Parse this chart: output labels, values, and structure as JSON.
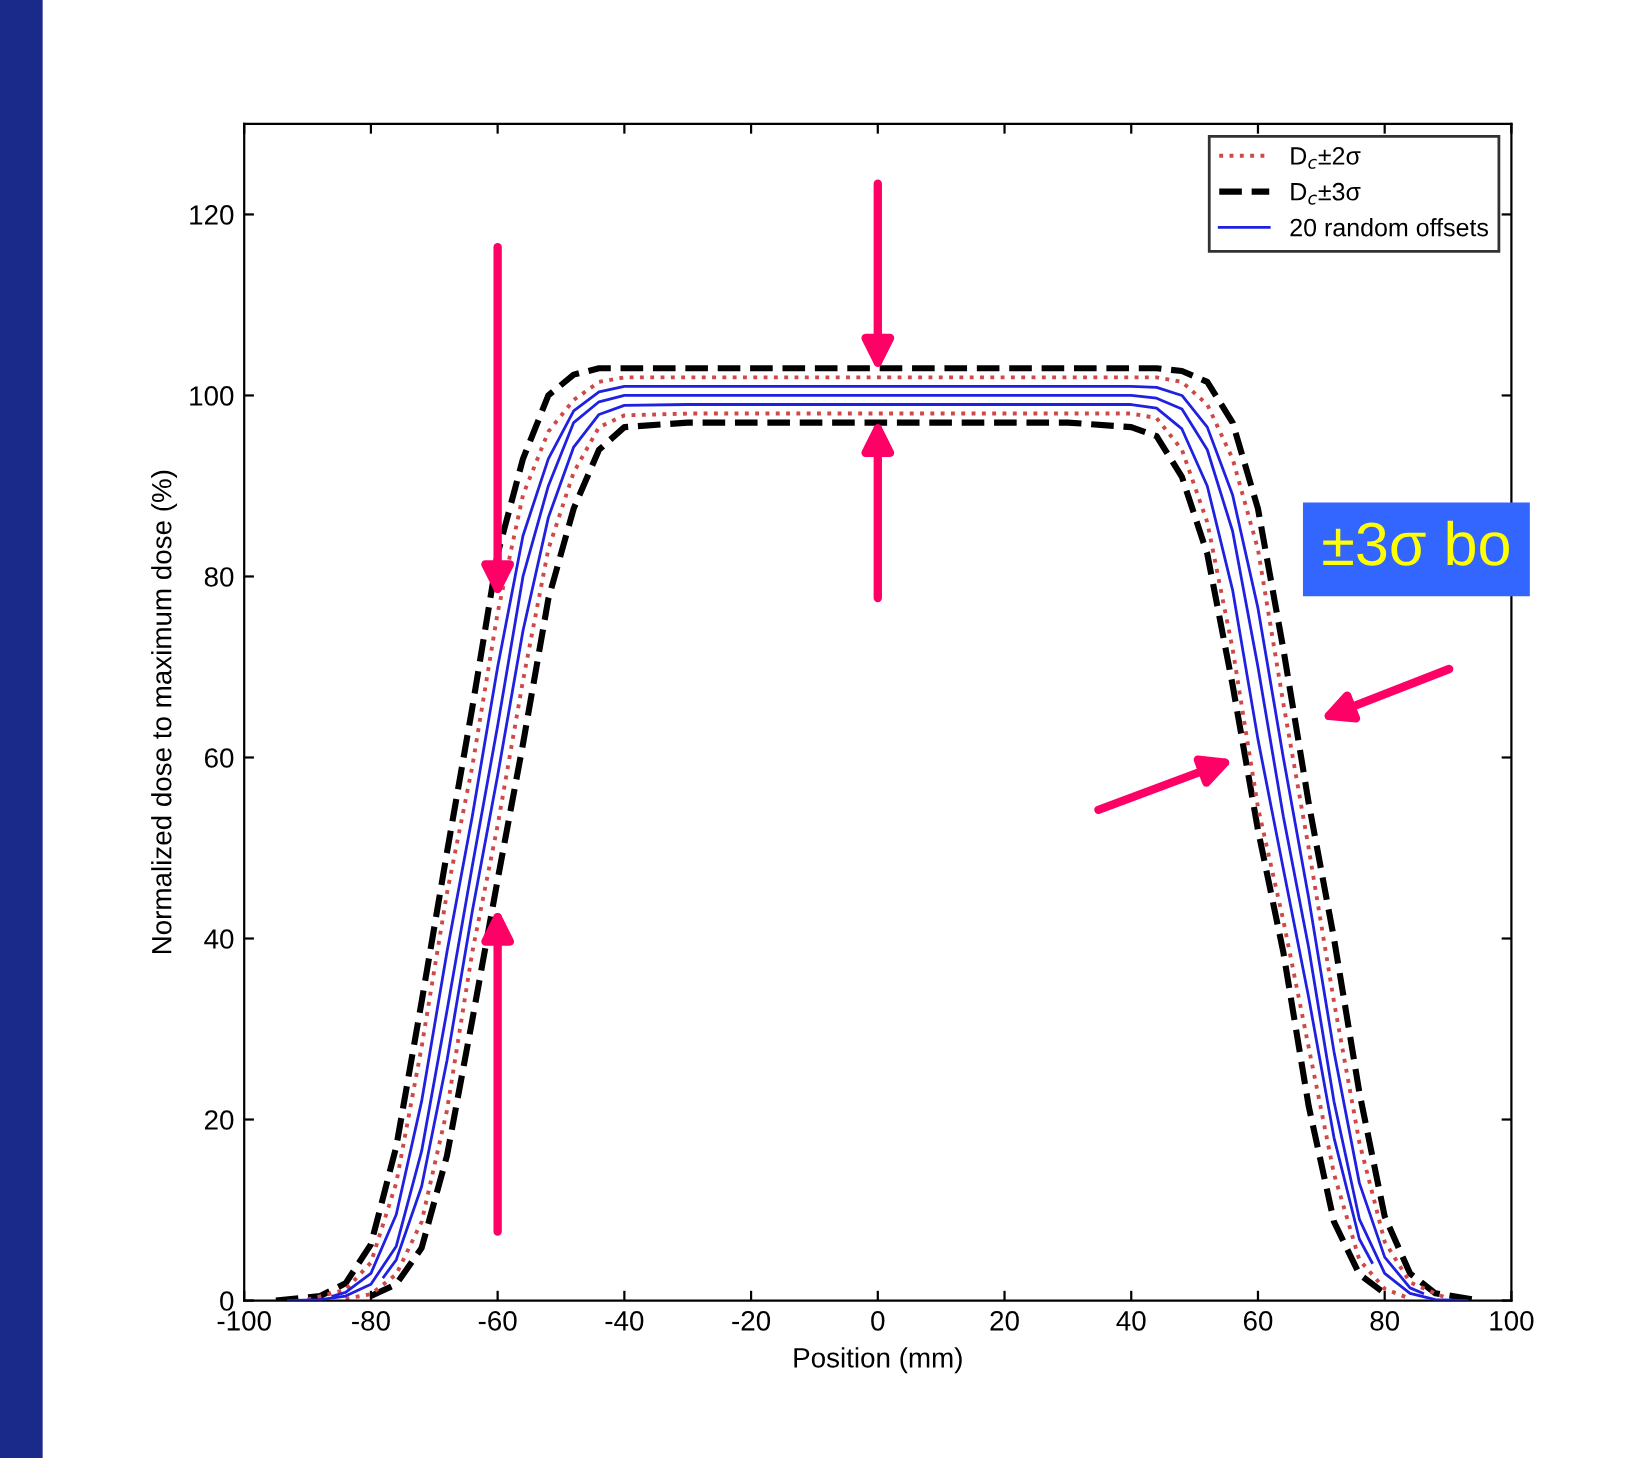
{
  "chart_data": {
    "type": "line",
    "xlabel": "Position (mm)",
    "ylabel": "Normalized dose to maximum dose (%)",
    "series": [
      {
        "name": "D$_{c}$±2σ",
        "color": "#d04848",
        "line_style": "dotted",
        "x": [
          -90,
          -84,
          -80,
          -76,
          -72,
          -68,
          -64,
          -60,
          -56,
          -52,
          -48,
          -44,
          -40,
          -30,
          -20,
          0,
          20,
          30,
          40,
          44,
          48,
          52,
          56,
          60,
          64,
          68,
          72,
          76,
          80,
          84,
          90
        ],
        "values": [
          0.1,
          1.2,
          4.2,
          13,
          28,
          45,
          59,
          76,
          89,
          96,
          99.5,
          101.5,
          102,
          102,
          102,
          102,
          102,
          102,
          102,
          102,
          101.5,
          99,
          93,
          83,
          66,
          50,
          33,
          17.5,
          6.5,
          2,
          0.2
        ]
      },
      {
        "color": "#d04848",
        "line_style": "dotted",
        "x": [
          -84,
          -80,
          -76,
          -72,
          -68,
          -64,
          -60,
          -56,
          -52,
          -48,
          -44,
          -40,
          -30,
          -20,
          0,
          20,
          30,
          40,
          44,
          48,
          52,
          56,
          60,
          64,
          68,
          72,
          76,
          80,
          84
        ],
        "values": [
          0.2,
          0.7,
          2.9,
          8.7,
          21,
          38.5,
          52.5,
          68.5,
          83,
          91.5,
          96.5,
          97.8,
          98,
          98,
          98,
          98,
          98,
          98,
          97.5,
          94,
          86,
          72,
          54.5,
          42,
          28,
          14,
          4.5,
          1.3,
          0.2
        ]
      },
      {
        "name": "D$_{c}$±3σ",
        "color": "#000000",
        "line_style": "dashed",
        "x": [
          -95,
          -88,
          -84,
          -80,
          -76,
          -72,
          -68,
          -64,
          -60,
          -56,
          -52,
          -48,
          -44,
          -40,
          -30,
          -20,
          0,
          20,
          30,
          40,
          44,
          48,
          52,
          56,
          60,
          64,
          68,
          72,
          76,
          80,
          84,
          88,
          95
        ],
        "values": [
          0,
          0.5,
          1.9,
          6.2,
          17,
          33,
          49.5,
          65.5,
          82.5,
          93,
          100,
          102.3,
          103,
          103,
          103,
          103,
          103,
          103,
          103,
          103,
          103,
          102.7,
          101.5,
          97,
          87.5,
          72,
          55,
          40,
          23,
          9.3,
          3,
          0.8,
          0
        ]
      },
      {
        "color": "#000000",
        "line_style": "dashed",
        "x": [
          -80,
          -76,
          -72,
          -68,
          -64,
          -60,
          -56,
          -52,
          -48,
          -44,
          -40,
          -30,
          -20,
          0,
          20,
          30,
          40,
          44,
          48,
          52,
          56,
          60,
          64,
          68,
          72,
          76,
          80
        ],
        "values": [
          0.5,
          1.8,
          5.8,
          16,
          31,
          46.5,
          61.5,
          77.5,
          87.5,
          94,
          96.5,
          97,
          97,
          97,
          97,
          97,
          96.5,
          95.5,
          91,
          82.5,
          68,
          52,
          38.5,
          21.5,
          8.7,
          2.9,
          0.8
        ]
      },
      {
        "name": "20 random offsets",
        "color": "#2020e0",
        "line_style": "solid",
        "x": [
          -93,
          -88,
          -84,
          -80,
          -76,
          -72,
          -68,
          -64,
          -60,
          -56,
          -52,
          -48,
          -44,
          -40,
          -30,
          -20,
          0,
          20,
          30,
          40,
          44,
          48,
          52,
          56,
          60,
          64,
          68,
          72,
          76,
          80,
          84,
          88,
          93
        ],
        "values": [
          0,
          0.1,
          0.5,
          1.8,
          6,
          16.5,
          32,
          48,
          63.5,
          80,
          90,
          97,
          99.3,
          100,
          100,
          100,
          100,
          100,
          100,
          100,
          99.7,
          98.5,
          94,
          85,
          70,
          53.5,
          39,
          22,
          9,
          3,
          0.8,
          0.1,
          0
        ]
      },
      {
        "color": "#2020e0",
        "line_style": "solid",
        "x": [
          -86,
          -84,
          -80,
          -76,
          -72,
          -68,
          -64,
          -60,
          -56,
          -52,
          -48,
          -44,
          -40,
          -30,
          -20,
          0,
          20,
          30,
          40,
          44,
          48,
          52,
          56,
          60,
          64,
          68,
          72,
          76,
          80,
          84,
          86
        ],
        "values": [
          0.5,
          0.9,
          3,
          9.5,
          22,
          38.5,
          53.5,
          70,
          84.5,
          93,
          98.3,
          100.4,
          101,
          101,
          101,
          101,
          101,
          101,
          101,
          100.9,
          100,
          96.5,
          89,
          76.5,
          60,
          44.5,
          27.5,
          13,
          4.8,
          1.4,
          0.8
        ]
      },
      {
        "color": "#2020e0",
        "line_style": "solid",
        "x": [
          -78,
          -76,
          -72,
          -68,
          -64,
          -60,
          -56,
          -52,
          -48,
          -44,
          -40,
          -30,
          -20,
          0,
          20,
          30,
          40,
          44,
          48,
          52,
          56,
          60,
          64,
          68,
          72,
          76,
          78
        ],
        "values": [
          2.6,
          4.5,
          12.6,
          26.5,
          43,
          58,
          74,
          86.5,
          94.3,
          97.9,
          98.9,
          99,
          99,
          99,
          99,
          99,
          99,
          98.6,
          96.3,
          90,
          78.5,
          62,
          47.7,
          33.5,
          18,
          6.8,
          4.2
        ]
      }
    ],
    "xlim": [
      -100,
      100
    ],
    "ylim": [
      0,
      130
    ],
    "xticks": [
      -100,
      -80,
      -60,
      -40,
      -20,
      0,
      20,
      40,
      60,
      80,
      100
    ],
    "yticks": [
      0,
      20,
      40,
      60,
      80,
      100,
      120
    ],
    "grid": false,
    "legend": "top right",
    "annotations": [
      "±3σ bo"
    ]
  }
}
